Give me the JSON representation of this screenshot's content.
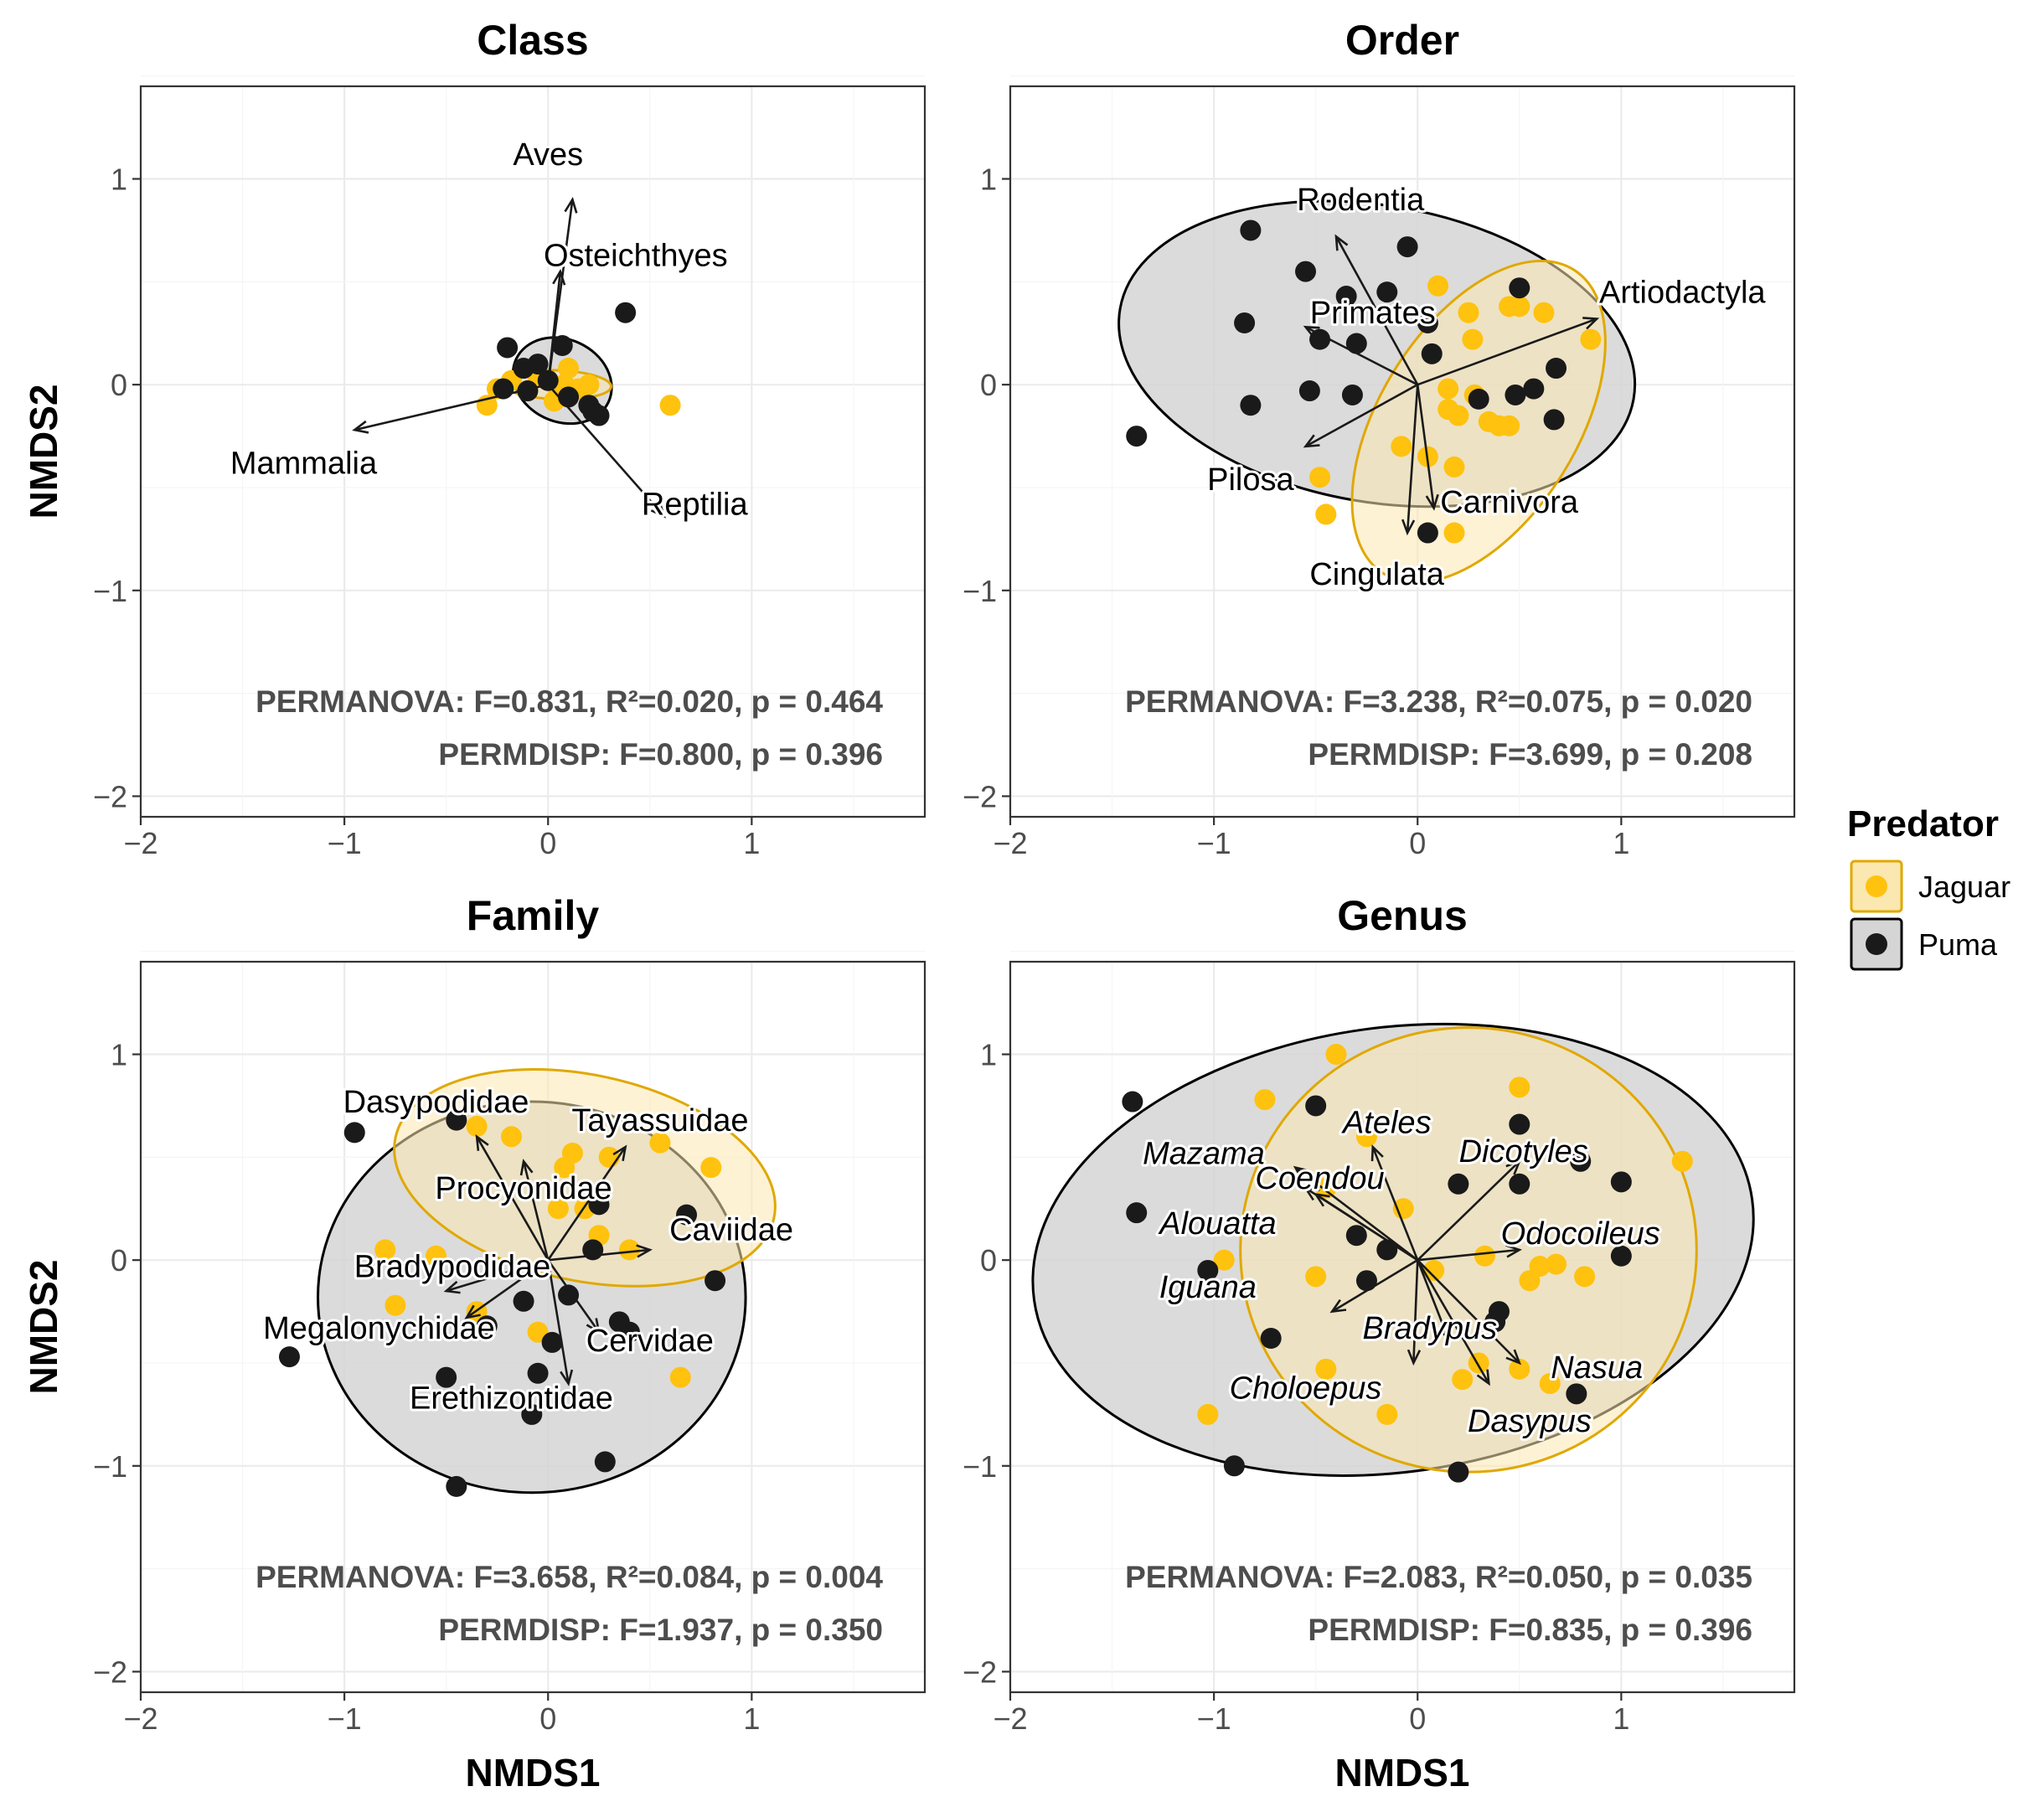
{
  "chart_data": {
    "type": "scatter",
    "xlabel": "NMDS1",
    "ylabel": "NMDS2",
    "xlim": [
      -2,
      1.85
    ],
    "ylim": [
      -2.1,
      1.45
    ],
    "xticks": [
      -2,
      -1,
      0,
      1
    ],
    "yticks": [
      -2,
      -1,
      0,
      1
    ],
    "xtick_labels": [
      "−2",
      "−1",
      "0",
      "1"
    ],
    "ytick_labels": [
      "−2",
      "−1",
      "0",
      "1"
    ],
    "grid": true,
    "legend": {
      "title": "Predator",
      "position": "right",
      "entries": [
        {
          "label": "Jaguar",
          "color": "#ffc20e",
          "fill": "#fbe7b0",
          "edge": "#e0a800"
        },
        {
          "label": "Puma",
          "color": "#1a1a1a",
          "fill": "#d5d5d5",
          "edge": "#000000"
        }
      ]
    },
    "panels": [
      {
        "title": "Class",
        "show_xlabel": false,
        "show_ylabel": true,
        "permanova": "PERMANOVA: F=0.831, R²=0.020, p = 0.464",
        "permdisp": "PERMDISP: F=0.800, p = 0.396",
        "ellipses": [
          {
            "group": "Puma",
            "cx": 0.07,
            "cy": 0.02,
            "rx": 0.25,
            "ry": 0.2,
            "angle": -25
          },
          {
            "group": "Jaguar",
            "cx": 0.04,
            "cy": 0.0,
            "rx": 0.27,
            "ry": 0.07,
            "angle": -2
          }
        ],
        "vectors": [
          {
            "label": "Aves",
            "x": 0.12,
            "y": 0.9,
            "lx": 0.0,
            "ly": 1.12,
            "italic": false
          },
          {
            "label": "Osteichthyes",
            "x": 0.06,
            "y": 0.55,
            "lx": 0.43,
            "ly": 0.63,
            "italic": false
          },
          {
            "label": "Mammalia",
            "x": -0.95,
            "y": -0.22,
            "lx": -1.2,
            "ly": -0.38,
            "italic": false
          },
          {
            "label": "Reptilia",
            "x": 0.57,
            "y": -0.64,
            "lx": 0.72,
            "ly": -0.58,
            "italic": false
          }
        ],
        "jaguar": [
          [
            -0.3,
            -0.1
          ],
          [
            -0.25,
            -0.02
          ],
          [
            -0.18,
            0.02
          ],
          [
            -0.1,
            -0.03
          ],
          [
            -0.05,
            0.04
          ],
          [
            0.0,
            0.02
          ],
          [
            0.05,
            -0.05
          ],
          [
            0.08,
            0.0
          ],
          [
            0.1,
            0.08
          ],
          [
            0.15,
            -0.02
          ],
          [
            0.03,
            -0.08
          ],
          [
            0.2,
            0.0
          ],
          [
            0.6,
            -0.1
          ]
        ],
        "puma": [
          [
            -0.2,
            0.18
          ],
          [
            -0.12,
            0.08
          ],
          [
            -0.05,
            0.1
          ],
          [
            0.0,
            0.02
          ],
          [
            -0.1,
            -0.03
          ],
          [
            -0.22,
            -0.02
          ],
          [
            0.07,
            0.19
          ],
          [
            0.1,
            -0.06
          ],
          [
            0.2,
            -0.1
          ],
          [
            0.25,
            -0.15
          ],
          [
            0.22,
            -0.13
          ],
          [
            0.38,
            0.35
          ]
        ]
      },
      {
        "title": "Order",
        "show_xlabel": false,
        "show_ylabel": false,
        "permanova": "PERMANOVA: F=3.238, R²=0.075, p = 0.020",
        "permdisp": "PERMDISP: F=3.699, p = 0.208",
        "ellipses": [
          {
            "group": "Puma",
            "cx": -0.2,
            "cy": 0.15,
            "rx": 1.28,
            "ry": 0.72,
            "angle": -10
          },
          {
            "group": "Jaguar",
            "cx": 0.3,
            "cy": -0.18,
            "rx": 0.88,
            "ry": 0.48,
            "angle": 58
          }
        ],
        "vectors": [
          {
            "label": "Rodentia",
            "x": -0.4,
            "y": 0.72,
            "lx": -0.28,
            "ly": 0.9,
            "italic": false
          },
          {
            "label": "Primates",
            "x": -0.55,
            "y": 0.28,
            "lx": -0.22,
            "ly": 0.35,
            "italic": false
          },
          {
            "label": "Artiodactyla",
            "x": 0.88,
            "y": 0.32,
            "lx": 1.3,
            "ly": 0.45,
            "italic": false
          },
          {
            "label": "Pilosa",
            "x": -0.55,
            "y": -0.3,
            "lx": -0.82,
            "ly": -0.46,
            "italic": false
          },
          {
            "label": "Carnivora",
            "x": 0.08,
            "y": -0.6,
            "lx": 0.45,
            "ly": -0.57,
            "italic": false
          },
          {
            "label": "Cingulata",
            "x": -0.05,
            "y": -0.72,
            "lx": -0.2,
            "ly": -0.92,
            "italic": false
          }
        ],
        "jaguar": [
          [
            0.1,
            0.48
          ],
          [
            0.25,
            0.35
          ],
          [
            0.27,
            0.22
          ],
          [
            0.5,
            0.38
          ],
          [
            0.62,
            0.35
          ],
          [
            0.85,
            0.22
          ],
          [
            0.15,
            -0.02
          ],
          [
            0.15,
            -0.12
          ],
          [
            0.2,
            -0.15
          ],
          [
            0.28,
            -0.05
          ],
          [
            0.35,
            -0.18
          ],
          [
            0.4,
            -0.2
          ],
          [
            0.45,
            -0.2
          ],
          [
            -0.08,
            -0.3
          ],
          [
            0.05,
            -0.35
          ],
          [
            0.18,
            -0.4
          ],
          [
            -0.48,
            -0.45
          ],
          [
            -0.45,
            -0.63
          ],
          [
            0.18,
            -0.72
          ],
          [
            0.45,
            0.38
          ]
        ],
        "puma": [
          [
            -0.82,
            0.75
          ],
          [
            -0.55,
            0.55
          ],
          [
            -0.35,
            0.43
          ],
          [
            -0.15,
            0.45
          ],
          [
            -0.05,
            0.67
          ],
          [
            -0.85,
            0.3
          ],
          [
            -0.48,
            0.22
          ],
          [
            -0.3,
            0.2
          ],
          [
            0.05,
            0.3
          ],
          [
            0.07,
            0.15
          ],
          [
            0.5,
            0.47
          ],
          [
            -0.82,
            -0.1
          ],
          [
            -0.53,
            -0.03
          ],
          [
            -0.32,
            -0.05
          ],
          [
            0.3,
            -0.07
          ],
          [
            0.48,
            -0.05
          ],
          [
            0.57,
            -0.02
          ],
          [
            0.68,
            0.08
          ],
          [
            0.67,
            -0.17
          ],
          [
            -1.38,
            -0.25
          ],
          [
            0.05,
            -0.72
          ]
        ]
      },
      {
        "title": "Family",
        "show_xlabel": true,
        "show_ylabel": true,
        "permanova": "PERMANOVA: F=3.658, R²=0.084, p = 0.004",
        "permdisp": "PERMDISP: F=1.937, p = 0.350",
        "ellipses": [
          {
            "group": "Puma",
            "cx": -0.08,
            "cy": -0.18,
            "rx": 1.05,
            "ry": 0.95,
            "angle": 0
          },
          {
            "group": "Jaguar",
            "cx": 0.18,
            "cy": 0.4,
            "rx": 0.95,
            "ry": 0.5,
            "angle": -12
          }
        ],
        "vectors": [
          {
            "label": "Dasypodidae",
            "x": -0.35,
            "y": 0.6,
            "lx": -0.55,
            "ly": 0.77,
            "italic": false
          },
          {
            "label": "Tayassuidae",
            "x": 0.38,
            "y": 0.55,
            "lx": 0.55,
            "ly": 0.68,
            "italic": false
          },
          {
            "label": "Procyonidae",
            "x": -0.12,
            "y": 0.48,
            "lx": -0.12,
            "ly": 0.35,
            "italic": false
          },
          {
            "label": "Caviidae",
            "x": 0.5,
            "y": 0.05,
            "lx": 0.9,
            "ly": 0.15,
            "italic": false
          },
          {
            "label": "Bradypodidae",
            "x": -0.5,
            "y": -0.15,
            "lx": -0.47,
            "ly": -0.03,
            "italic": false
          },
          {
            "label": "Megalonychidae",
            "x": -0.4,
            "y": -0.28,
            "lx": -0.83,
            "ly": -0.33,
            "italic": false
          },
          {
            "label": "Cervidae",
            "x": 0.25,
            "y": -0.35,
            "lx": 0.5,
            "ly": -0.39,
            "italic": false
          },
          {
            "label": "Erethizontidae",
            "x": 0.1,
            "y": -0.6,
            "lx": -0.18,
            "ly": -0.67,
            "italic": false
          }
        ],
        "jaguar": [
          [
            -0.35,
            0.65
          ],
          [
            -0.18,
            0.6
          ],
          [
            0.08,
            0.45
          ],
          [
            0.12,
            0.52
          ],
          [
            0.3,
            0.5
          ],
          [
            0.55,
            0.57
          ],
          [
            0.8,
            0.45
          ],
          [
            0.05,
            0.25
          ],
          [
            0.18,
            0.25
          ],
          [
            0.4,
            0.05
          ],
          [
            0.25,
            0.12
          ],
          [
            -0.8,
            0.05
          ],
          [
            -0.55,
            0.02
          ],
          [
            -0.75,
            -0.22
          ],
          [
            -0.35,
            -0.25
          ],
          [
            -0.05,
            -0.35
          ],
          [
            0.65,
            -0.57
          ]
        ],
        "puma": [
          [
            -0.95,
            0.62
          ],
          [
            -0.45,
            0.68
          ],
          [
            0.25,
            0.27
          ],
          [
            0.22,
            0.05
          ],
          [
            0.68,
            0.22
          ],
          [
            0.82,
            -0.1
          ],
          [
            0.35,
            -0.3
          ],
          [
            0.4,
            -0.35
          ],
          [
            0.1,
            -0.17
          ],
          [
            -0.12,
            -0.2
          ],
          [
            -0.3,
            -0.32
          ],
          [
            0.02,
            -0.4
          ],
          [
            -0.05,
            -0.55
          ],
          [
            -0.5,
            -0.57
          ],
          [
            -1.27,
            -0.47
          ],
          [
            -0.08,
            -0.75
          ],
          [
            0.28,
            -0.98
          ],
          [
            -0.45,
            -1.1
          ]
        ]
      },
      {
        "title": "Genus",
        "show_xlabel": true,
        "show_ylabel": false,
        "permanova": "PERMANOVA: F=2.083, R²=0.050, p = 0.035",
        "permdisp": "PERMDISP: F=0.835, p = 0.396",
        "ellipses": [
          {
            "group": "Puma",
            "cx": -0.12,
            "cy": 0.05,
            "rx": 1.78,
            "ry": 1.08,
            "angle": 8
          },
          {
            "group": "Jaguar",
            "cx": 0.25,
            "cy": 0.05,
            "rx": 1.12,
            "ry": 1.08,
            "angle": 0
          }
        ],
        "vectors": [
          {
            "label": "Mazama",
            "x": -0.6,
            "y": 0.45,
            "lx": -1.05,
            "ly": 0.52,
            "italic": true
          },
          {
            "label": "Ateles",
            "x": -0.22,
            "y": 0.55,
            "lx": -0.15,
            "ly": 0.67,
            "italic": true
          },
          {
            "label": "Dicotyles",
            "x": 0.5,
            "y": 0.48,
            "lx": 0.52,
            "ly": 0.53,
            "italic": true
          },
          {
            "label": "Coendou",
            "x": -0.55,
            "y": 0.35,
            "lx": -0.48,
            "ly": 0.4,
            "italic": true
          },
          {
            "label": "Alouatta",
            "x": -0.5,
            "y": 0.32,
            "lx": -0.98,
            "ly": 0.18,
            "italic": true
          },
          {
            "label": "Odocoileus",
            "x": 0.5,
            "y": 0.05,
            "lx": 0.8,
            "ly": 0.13,
            "italic": true
          },
          {
            "label": "Iguana",
            "x": -0.42,
            "y": -0.25,
            "lx": -1.03,
            "ly": -0.13,
            "italic": true
          },
          {
            "label": "Bradypus",
            "x": 0.15,
            "y": -0.38,
            "lx": 0.06,
            "ly": -0.33,
            "italic": true
          },
          {
            "label": "Choloepus",
            "x": -0.02,
            "y": -0.5,
            "lx": -0.55,
            "ly": -0.62,
            "italic": true
          },
          {
            "label": "Nasua",
            "x": 0.5,
            "y": -0.5,
            "lx": 0.88,
            "ly": -0.52,
            "italic": true
          },
          {
            "label": "Dasypus",
            "x": 0.35,
            "y": -0.6,
            "lx": 0.55,
            "ly": -0.78,
            "italic": true
          }
        ],
        "jaguar": [
          [
            -0.4,
            1.0
          ],
          [
            -0.75,
            0.78
          ],
          [
            0.5,
            0.84
          ],
          [
            -0.25,
            0.6
          ],
          [
            -0.07,
            0.25
          ],
          [
            -0.45,
            0.35
          ],
          [
            0.33,
            0.02
          ],
          [
            0.6,
            -0.03
          ],
          [
            0.68,
            -0.02
          ],
          [
            0.82,
            -0.08
          ],
          [
            0.55,
            -0.1
          ],
          [
            1.3,
            0.48
          ],
          [
            0.08,
            -0.05
          ],
          [
            -0.5,
            -0.08
          ],
          [
            -0.95,
            0.0
          ],
          [
            -0.45,
            -0.53
          ],
          [
            0.3,
            -0.5
          ],
          [
            0.5,
            -0.53
          ],
          [
            -0.15,
            -0.75
          ],
          [
            -1.03,
            -0.75
          ],
          [
            0.22,
            -0.58
          ],
          [
            0.65,
            -0.6
          ]
        ],
        "puma": [
          [
            -1.4,
            0.77
          ],
          [
            -1.38,
            0.23
          ],
          [
            -0.5,
            0.75
          ],
          [
            0.5,
            0.66
          ],
          [
            0.2,
            0.37
          ],
          [
            0.5,
            0.37
          ],
          [
            0.8,
            0.48
          ],
          [
            1.0,
            0.38
          ],
          [
            -0.3,
            0.12
          ],
          [
            -0.15,
            0.05
          ],
          [
            1.0,
            0.02
          ],
          [
            -1.03,
            -0.05
          ],
          [
            -0.25,
            -0.1
          ],
          [
            0.4,
            -0.25
          ],
          [
            0.38,
            -0.3
          ],
          [
            -0.72,
            -0.38
          ],
          [
            0.78,
            -0.65
          ],
          [
            -0.9,
            -1.0
          ],
          [
            0.2,
            -1.03
          ]
        ]
      }
    ]
  }
}
